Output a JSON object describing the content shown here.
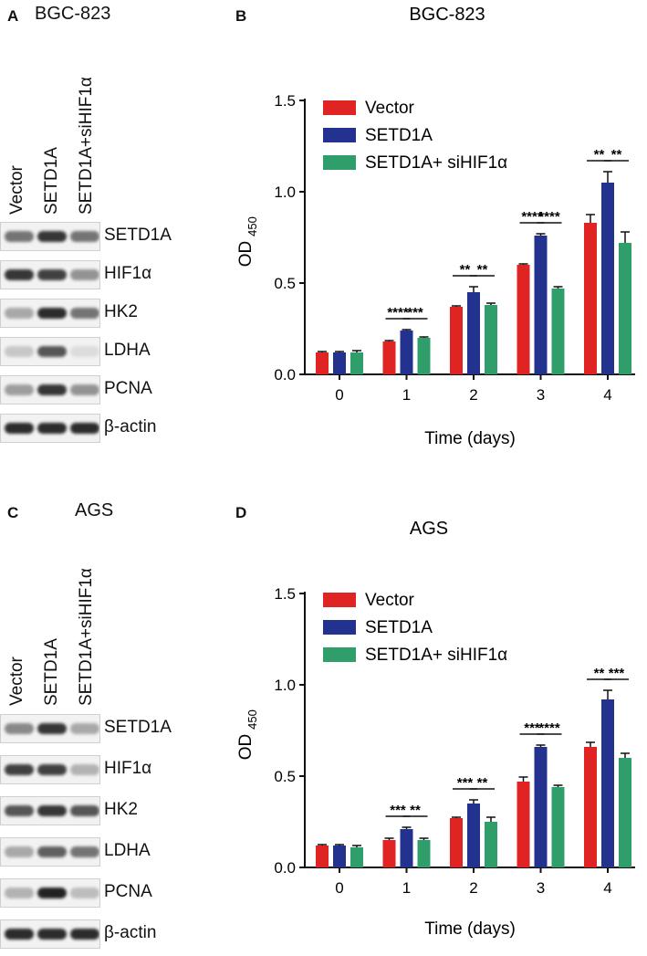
{
  "panels": {
    "A": {
      "letter": "A",
      "title": "BGC-823"
    },
    "B": {
      "letter": "B",
      "title": "BGC-823"
    },
    "C": {
      "letter": "C",
      "title": "AGS"
    },
    "D": {
      "letter": "D",
      "title": "AGS"
    }
  },
  "blot": {
    "lanes": [
      "Vector",
      "SETD1A",
      "SETD1A+siHIF1α"
    ],
    "rows_bgc": [
      "SETD1A",
      "HIF1α",
      "HK2",
      "LDHA",
      "PCNA",
      "β-actin"
    ],
    "rows_ags": [
      "SETD1A",
      "HIF1α",
      "HK2",
      "LDHA",
      "PCNA",
      "β-actin"
    ],
    "intensity_bgc": [
      [
        0.6,
        0.9,
        0.6
      ],
      [
        0.9,
        0.85,
        0.45
      ],
      [
        0.35,
        0.95,
        0.6
      ],
      [
        0.2,
        0.75,
        0.1
      ],
      [
        0.4,
        0.9,
        0.45
      ],
      [
        0.95,
        0.95,
        0.95
      ]
    ],
    "intensity_ags": [
      [
        0.5,
        0.9,
        0.35
      ],
      [
        0.85,
        0.85,
        0.3
      ],
      [
        0.75,
        0.9,
        0.75
      ],
      [
        0.35,
        0.7,
        0.6
      ],
      [
        0.3,
        1.0,
        0.25
      ],
      [
        0.95,
        0.95,
        0.95
      ]
    ]
  },
  "chart_data": [
    {
      "type": "bar",
      "panel": "B",
      "title": "BGC-823",
      "xlabel": "Time (days)",
      "ylabel_main": "OD",
      "ylabel_sub": "450",
      "categories": [
        "0",
        "1",
        "2",
        "3",
        "4"
      ],
      "yticks": [
        "0.0",
        "0.5",
        "1.0",
        "1.5"
      ],
      "ylim": [
        0,
        1.5
      ],
      "colors": [
        "#e02424",
        "#23318f",
        "#2f9e6b"
      ],
      "series": [
        {
          "name": "Vector",
          "values": [
            0.12,
            0.18,
            0.37,
            0.6,
            0.83
          ],
          "errors": [
            0.005,
            0.005,
            0.005,
            0.005,
            0.045
          ]
        },
        {
          "name": "SETD1A",
          "values": [
            0.12,
            0.24,
            0.45,
            0.76,
            1.05
          ],
          "errors": [
            0.005,
            0.005,
            0.03,
            0.01,
            0.06
          ]
        },
        {
          "name": "SETD1A+ siHIF1α",
          "values": [
            0.12,
            0.2,
            0.38,
            0.47,
            0.72
          ],
          "errors": [
            0.01,
            0.005,
            0.01,
            0.01,
            0.06
          ]
        }
      ],
      "significance": [
        {
          "category": 1,
          "pair": [
            0,
            1
          ],
          "label": "****"
        },
        {
          "category": 1,
          "pair": [
            1,
            2
          ],
          "label": "***"
        },
        {
          "category": 2,
          "pair": [
            0,
            1
          ],
          "label": "**"
        },
        {
          "category": 2,
          "pair": [
            1,
            2
          ],
          "label": "**"
        },
        {
          "category": 3,
          "pair": [
            0,
            1
          ],
          "label": "****"
        },
        {
          "category": 3,
          "pair": [
            1,
            2
          ],
          "label": "****"
        },
        {
          "category": 4,
          "pair": [
            0,
            1
          ],
          "label": "**"
        },
        {
          "category": 4,
          "pair": [
            1,
            2
          ],
          "label": "**"
        }
      ],
      "legend_position": "top-left"
    },
    {
      "type": "bar",
      "panel": "D",
      "title": "AGS",
      "xlabel": "Time (days)",
      "ylabel_main": "OD",
      "ylabel_sub": "450",
      "categories": [
        "0",
        "1",
        "2",
        "3",
        "4"
      ],
      "yticks": [
        "0.0",
        "0.5",
        "1.0",
        "1.5"
      ],
      "ylim": [
        0,
        1.5
      ],
      "colors": [
        "#e02424",
        "#23318f",
        "#2f9e6b"
      ],
      "series": [
        {
          "name": "Vector",
          "values": [
            0.12,
            0.15,
            0.27,
            0.47,
            0.66
          ],
          "errors": [
            0.005,
            0.01,
            0.005,
            0.025,
            0.025
          ]
        },
        {
          "name": "SETD1A",
          "values": [
            0.12,
            0.21,
            0.35,
            0.66,
            0.92
          ],
          "errors": [
            0.005,
            0.01,
            0.02,
            0.01,
            0.05
          ]
        },
        {
          "name": "SETD1A+ siHIF1α",
          "values": [
            0.11,
            0.15,
            0.25,
            0.44,
            0.6
          ],
          "errors": [
            0.01,
            0.01,
            0.025,
            0.01,
            0.025
          ]
        }
      ],
      "significance": [
        {
          "category": 1,
          "pair": [
            0,
            1
          ],
          "label": "***"
        },
        {
          "category": 1,
          "pair": [
            1,
            2
          ],
          "label": "**"
        },
        {
          "category": 2,
          "pair": [
            0,
            1
          ],
          "label": "***"
        },
        {
          "category": 2,
          "pair": [
            1,
            2
          ],
          "label": "**"
        },
        {
          "category": 3,
          "pair": [
            0,
            1
          ],
          "label": "***"
        },
        {
          "category": 3,
          "pair": [
            1,
            2
          ],
          "label": "****"
        },
        {
          "category": 4,
          "pair": [
            0,
            1
          ],
          "label": "**"
        },
        {
          "category": 4,
          "pair": [
            1,
            2
          ],
          "label": "***"
        }
      ],
      "legend_position": "top-left"
    }
  ]
}
